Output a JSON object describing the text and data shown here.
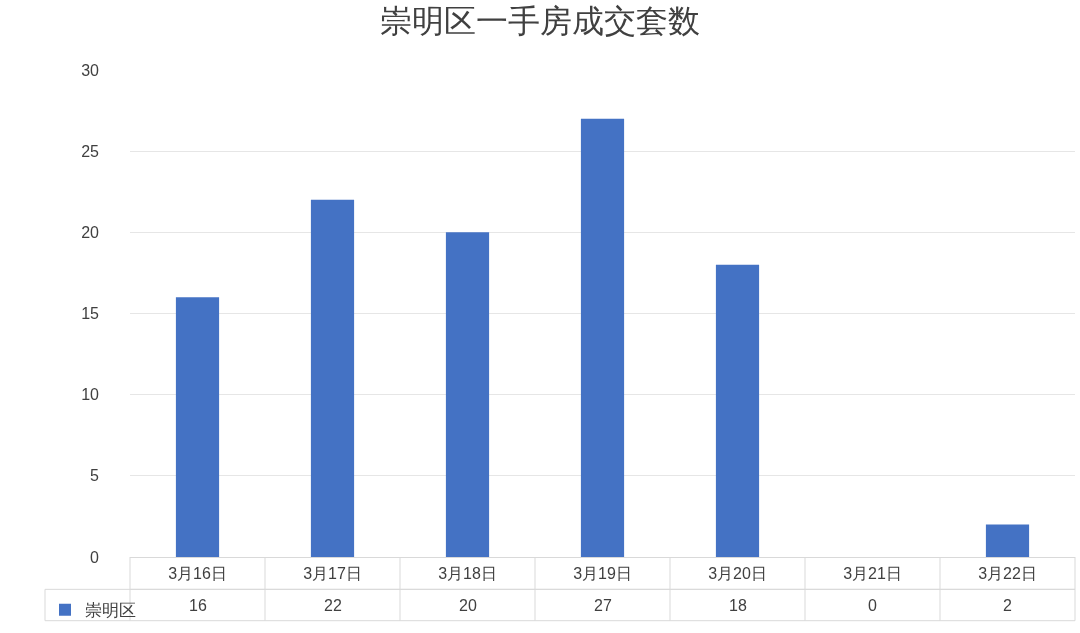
{
  "chart_data": {
    "type": "bar",
    "title": "崇明区一手房成交套数",
    "categories": [
      "3月16日",
      "3月17日",
      "3月18日",
      "3月19日",
      "3月20日",
      "3月21日",
      "3月22日"
    ],
    "series": [
      {
        "name": "崇明区",
        "color": "#4472c4",
        "values": [
          16,
          22,
          20,
          27,
          18,
          0,
          2
        ]
      }
    ],
    "ylim": [
      0,
      30
    ],
    "yticks": [
      0,
      5,
      10,
      15,
      20,
      25,
      30
    ],
    "grid": "y",
    "legend": "bottom left",
    "data_labels": true
  }
}
